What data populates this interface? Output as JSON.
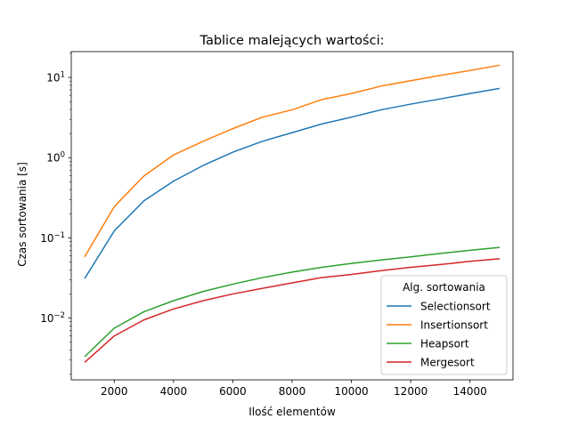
{
  "chart_data": {
    "type": "line",
    "title": "Tablice malejących wartości:",
    "xlabel": "Ilość elementów",
    "ylabel": "Czas sortowania [s]",
    "xlim": [
      550,
      15450
    ],
    "ylim": [
      0.0017,
      21
    ],
    "yscale": "log",
    "grid": false,
    "x_ticks": [
      2000,
      4000,
      6000,
      8000,
      10000,
      12000,
      14000
    ],
    "x_tick_labels": [
      "2000",
      "4000",
      "6000",
      "8000",
      "10000",
      "12000",
      "14000"
    ],
    "y_ticks": [
      0.01,
      0.1,
      1,
      10
    ],
    "y_tick_labels": [
      {
        "base": "10",
        "exp": "−2"
      },
      {
        "base": "10",
        "exp": "−1"
      },
      {
        "base": "10",
        "exp": "0"
      },
      {
        "base": "10",
        "exp": "1"
      }
    ],
    "legend": {
      "title": "Alg. sortowania",
      "placement": "lower-right"
    },
    "x": [
      1000,
      2000,
      3000,
      4000,
      5000,
      6000,
      7000,
      8000,
      9000,
      10000,
      11000,
      12000,
      13000,
      14000,
      15000
    ],
    "series": [
      {
        "name": "Selectionsort",
        "color": "#1f77b4",
        "values": [
          0.031,
          0.122,
          0.29,
          0.51,
          0.8,
          1.17,
          1.6,
          2.05,
          2.63,
          3.2,
          3.95,
          4.65,
          5.4,
          6.3,
          7.3
        ]
      },
      {
        "name": "Insertionsort",
        "color": "#ff7f0e",
        "values": [
          0.058,
          0.245,
          0.59,
          1.08,
          1.6,
          2.3,
          3.2,
          3.95,
          5.3,
          6.3,
          7.8,
          9.1,
          10.6,
          12.2,
          14.2
        ]
      },
      {
        "name": "Heapsort",
        "color": "#2ca02c",
        "values": [
          0.0033,
          0.0075,
          0.012,
          0.0165,
          0.0215,
          0.0265,
          0.032,
          0.0375,
          0.043,
          0.048,
          0.053,
          0.058,
          0.064,
          0.07,
          0.076
        ]
      },
      {
        "name": "Mergesort",
        "color": "#d62728",
        "values": [
          0.0028,
          0.006,
          0.0095,
          0.013,
          0.0165,
          0.02,
          0.0235,
          0.0275,
          0.032,
          0.035,
          0.039,
          0.043,
          0.0465,
          0.051,
          0.055
        ]
      }
    ]
  }
}
